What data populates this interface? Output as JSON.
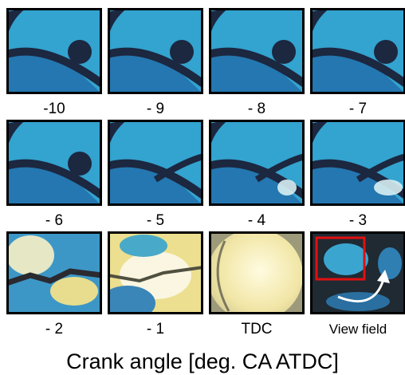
{
  "frames": [
    {
      "label": "-10"
    },
    {
      "label": "- 9"
    },
    {
      "label": "- 8"
    },
    {
      "label": "- 7"
    },
    {
      "label": "- 6"
    },
    {
      "label": "- 5"
    },
    {
      "label": "- 4"
    },
    {
      "label": "- 3"
    },
    {
      "label": "- 2"
    },
    {
      "label": "- 1"
    },
    {
      "label": "TDC"
    },
    {
      "label": "View field"
    }
  ],
  "caption": "Crank angle [deg. CA ATDC]"
}
